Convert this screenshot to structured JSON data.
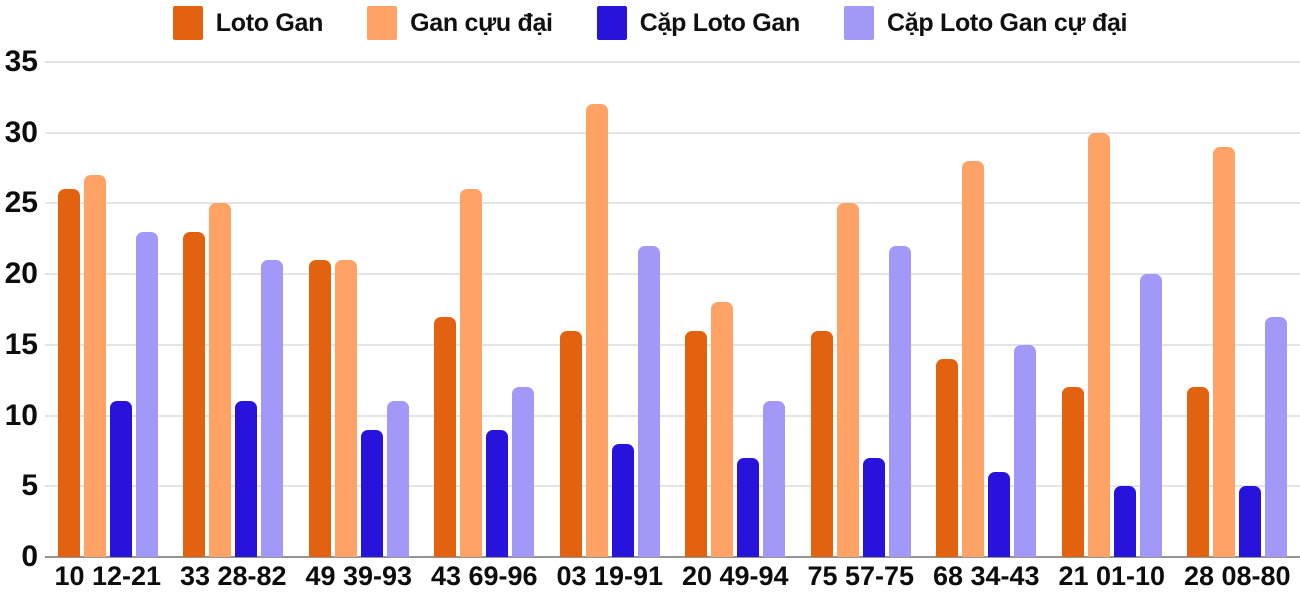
{
  "chart_data": {
    "type": "bar",
    "title": "",
    "xlabel": "",
    "ylabel": "",
    "categories": [
      "10 12-21",
      "33 28-82",
      "49 39-93",
      "43 69-96",
      "03 19-91",
      "20 49-94",
      "75 57-75",
      "68 34-43",
      "21 01-10",
      "28 08-80"
    ],
    "series": [
      {
        "name": "Loto Gan",
        "color": "#e2620f",
        "values": [
          26,
          23,
          21,
          17,
          16,
          16,
          16,
          14,
          12,
          12
        ]
      },
      {
        "name": "Gan cựu đại",
        "color": "#ffa266",
        "values": [
          27,
          25,
          21,
          26,
          32,
          18,
          25,
          28,
          30,
          29
        ]
      },
      {
        "name": "Cặp Loto Gan",
        "color": "#2713dc",
        "values": [
          11,
          11,
          9,
          9,
          8,
          7,
          7,
          6,
          5,
          5
        ]
      },
      {
        "name": "Cặp Loto Gan cự đại",
        "color": "#a198f7",
        "values": [
          23,
          21,
          11,
          12,
          22,
          11,
          22,
          15,
          20,
          17
        ]
      }
    ],
    "ylim": [
      0,
      35
    ],
    "yticks": [
      0,
      5,
      10,
      15,
      20,
      25,
      30,
      35
    ],
    "grid": true,
    "legend_position": "top"
  },
  "colors": {
    "background": "#ffffff",
    "gridline": "#e4e4e4",
    "axis_line": "#949494",
    "text": "#0d0d0d"
  }
}
